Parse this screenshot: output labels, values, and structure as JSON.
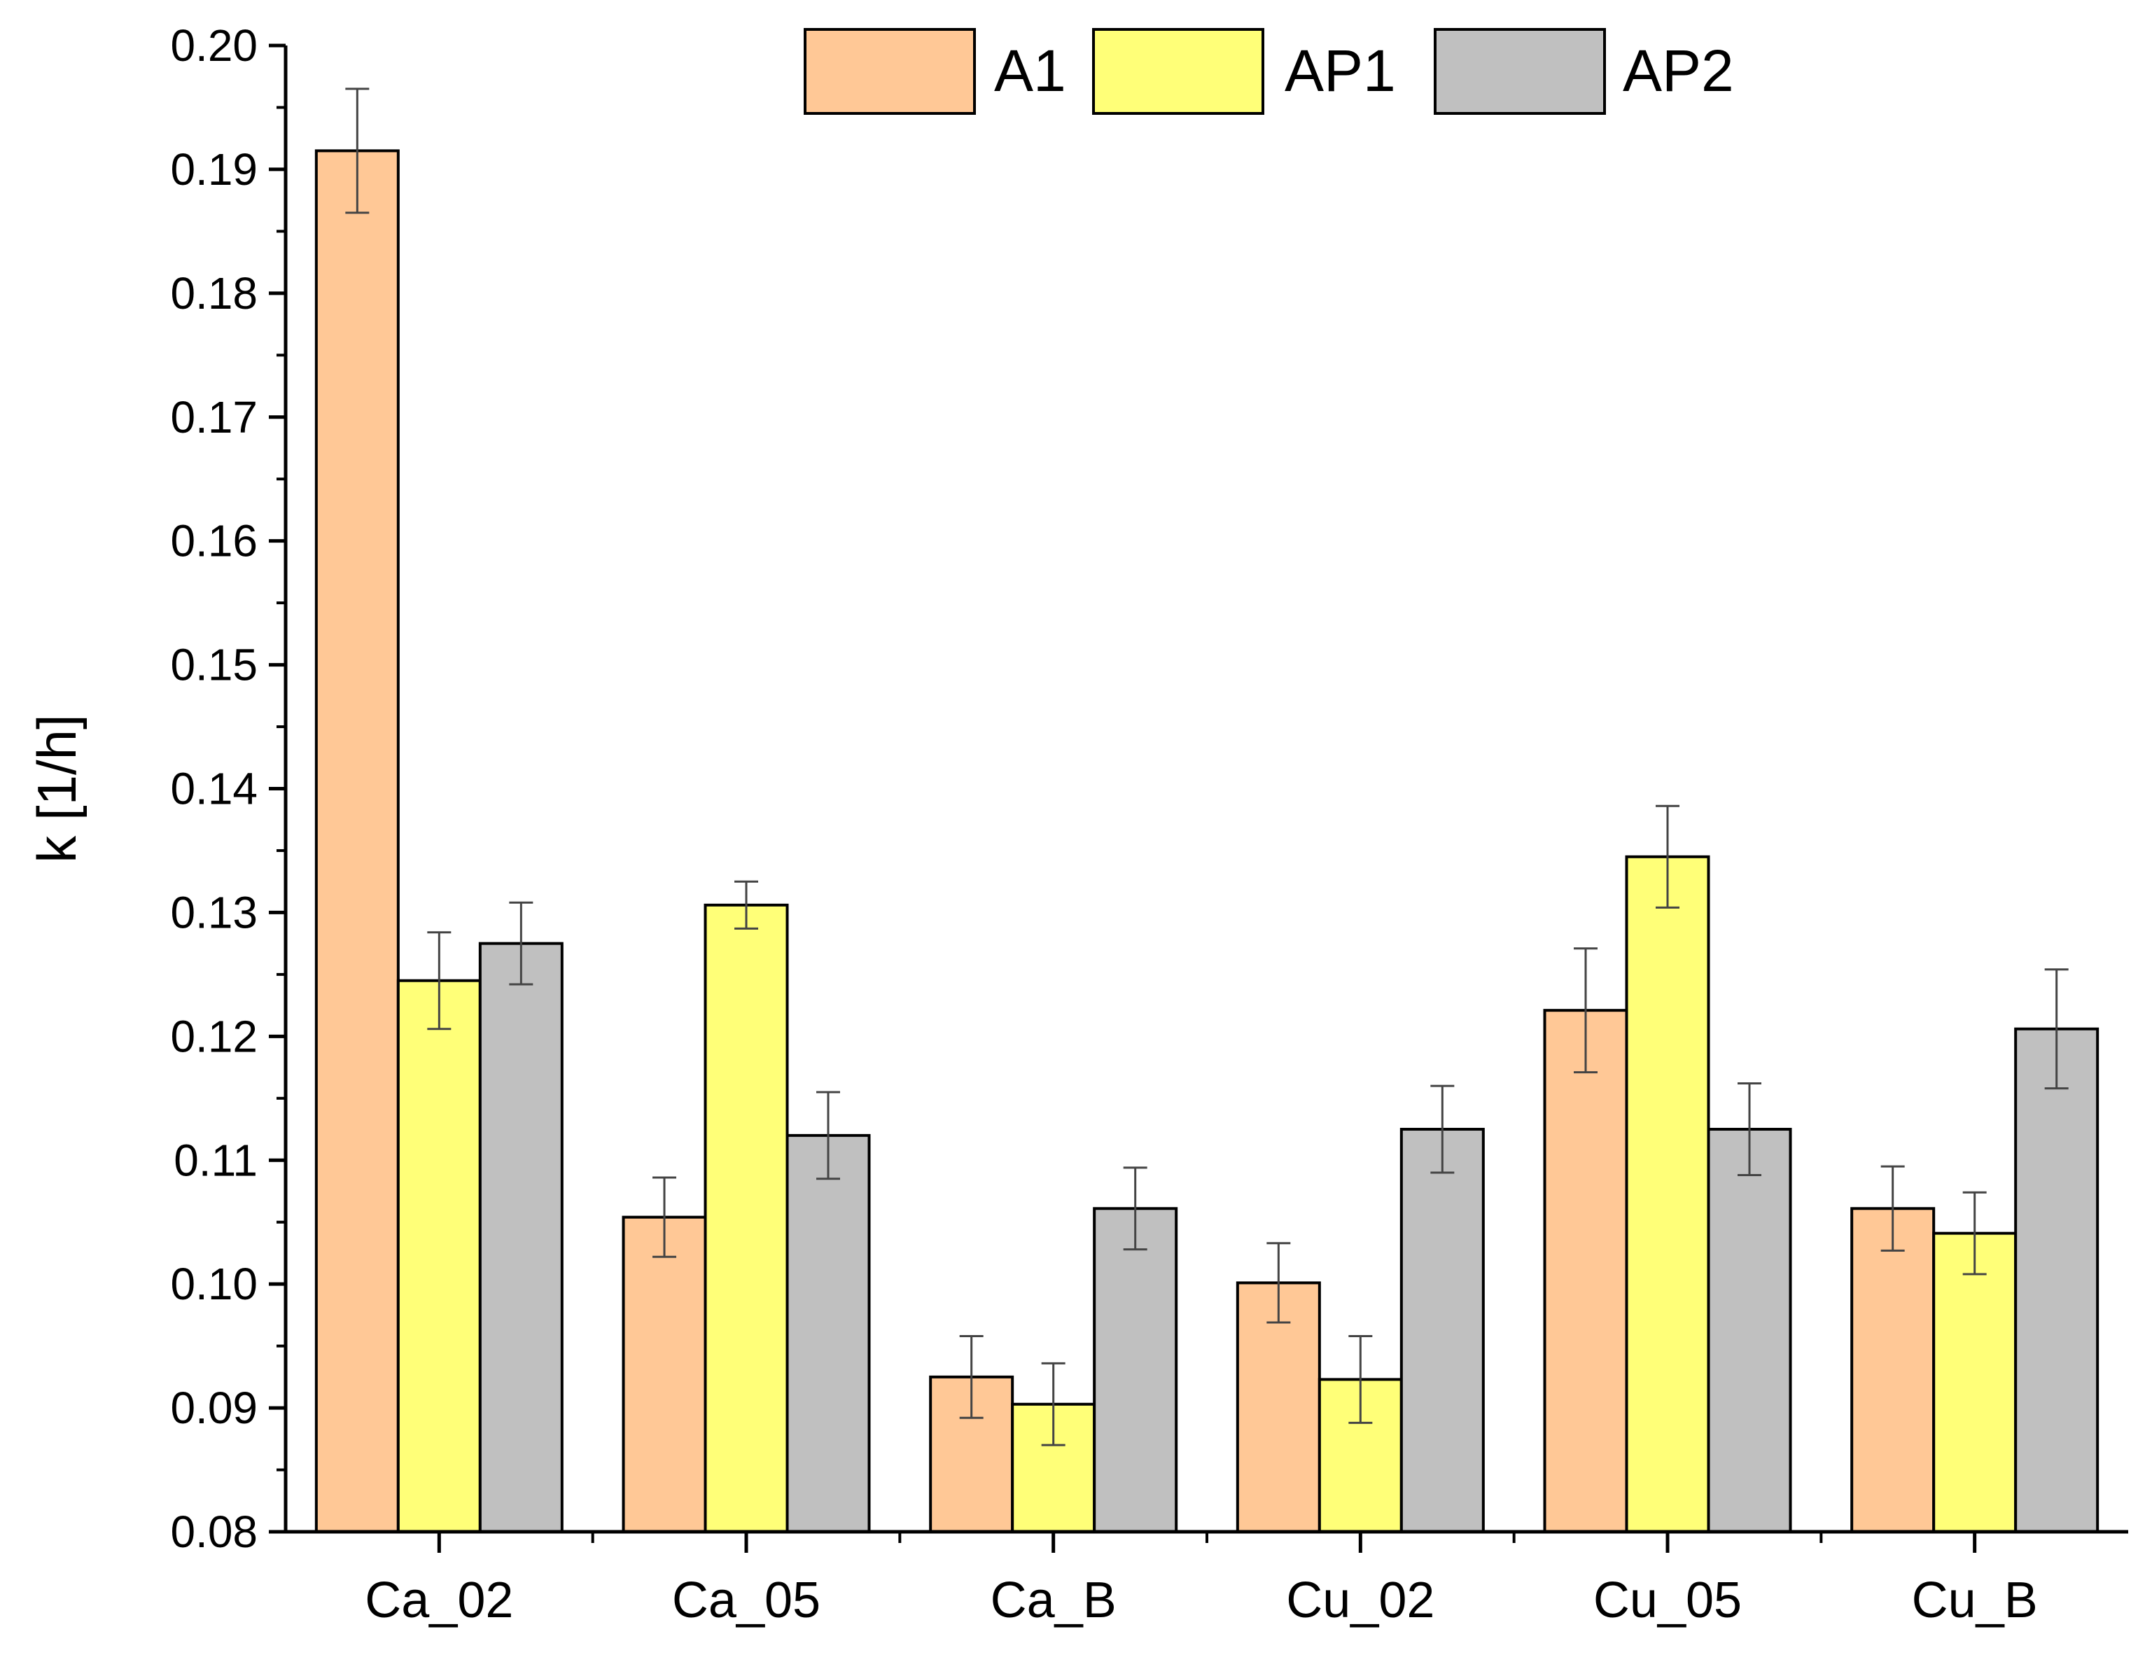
{
  "chart_data": {
    "type": "bar",
    "title": "",
    "xlabel": "",
    "ylabel": "k [1/h]",
    "ylim": [
      0.08,
      0.2
    ],
    "yticks": [
      "0.08",
      "0.09",
      "0.10",
      "0.11",
      "0.12",
      "0.13",
      "0.14",
      "0.15",
      "0.16",
      "0.17",
      "0.18",
      "0.19",
      "0.20"
    ],
    "categories": [
      "Ca_02",
      "Ca_05",
      "Ca_B",
      "Cu_02",
      "Cu_05",
      "Cu_B"
    ],
    "legend_position": "top-right",
    "series": [
      {
        "name": "A1",
        "color": "#FFC896",
        "values": [
          0.1915,
          0.1054,
          0.0925,
          0.1001,
          0.1221,
          0.1061
        ],
        "errors": [
          0.005,
          0.0032,
          0.0033,
          0.0032,
          0.005,
          0.0034
        ]
      },
      {
        "name": "AP1",
        "color": "#FFFF78",
        "values": [
          0.1245,
          0.1306,
          0.0903,
          0.0923,
          0.1345,
          0.1041
        ],
        "errors": [
          0.0039,
          0.0019,
          0.0033,
          0.0035,
          0.0041,
          0.0033
        ]
      },
      {
        "name": "AP2",
        "color": "#C0C0C0",
        "values": [
          0.1275,
          0.112,
          0.1061,
          0.1125,
          0.1125,
          0.1206
        ],
        "errors": [
          0.0033,
          0.0035,
          0.0033,
          0.0035,
          0.0037,
          0.0048
        ]
      }
    ]
  }
}
